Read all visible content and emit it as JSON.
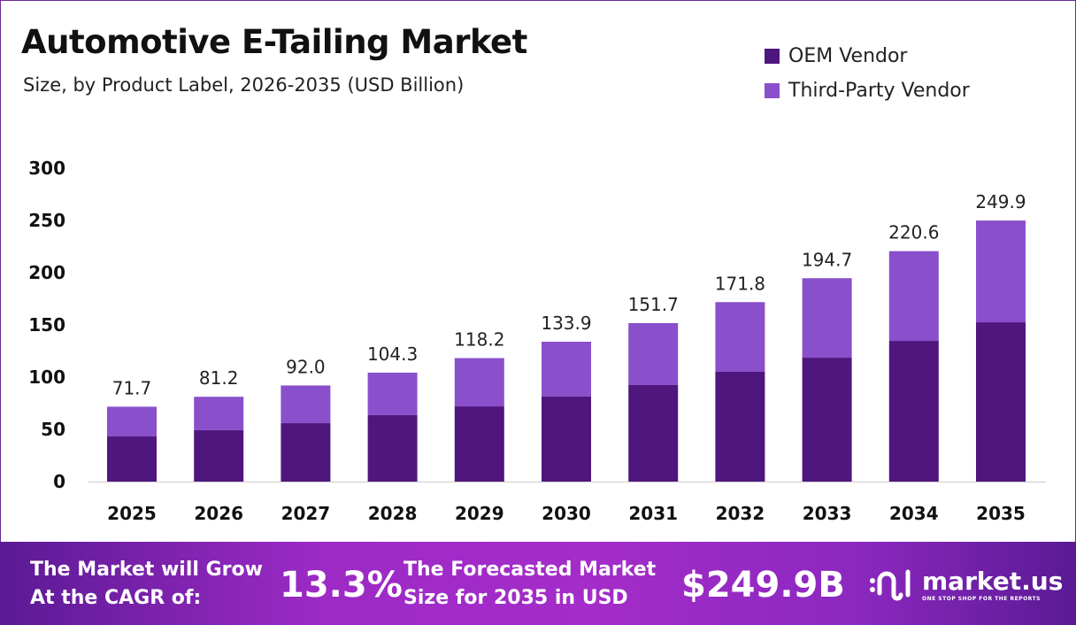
{
  "header": {
    "title": "Automotive E-Tailing Market",
    "subtitle": "Size, by Product Label, 2026-2035 (USD Billion)"
  },
  "chart_data": {
    "type": "bar",
    "stacked": true,
    "categories": [
      "2025",
      "2026",
      "2027",
      "2028",
      "2029",
      "2030",
      "2031",
      "2032",
      "2033",
      "2034",
      "2035"
    ],
    "series": [
      {
        "name": "OEM Vendor",
        "color": "#4f167e",
        "values": [
          43.2,
          49.2,
          55.9,
          63.6,
          72.0,
          81.4,
          92.4,
          105.1,
          118.6,
          134.7,
          152.5
        ]
      },
      {
        "name": "Third-Party Vendor",
        "color": "#8a4fcb",
        "values": [
          28.5,
          32.0,
          36.1,
          40.7,
          46.2,
          52.5,
          59.3,
          66.7,
          76.1,
          85.9,
          97.4
        ]
      }
    ],
    "totals": [
      "71.7",
      "81.2",
      "92.0",
      "104.3",
      "118.2",
      "133.9",
      "151.7",
      "171.8",
      "194.7",
      "220.6",
      "249.9"
    ],
    "yticks": [
      "0",
      "50",
      "100",
      "150",
      "200",
      "250",
      "300"
    ],
    "ylim": [
      0,
      300
    ],
    "grid": false,
    "legend": "top-right",
    "xlabel": "",
    "ylabel": ""
  },
  "footer": {
    "cagr_label_1": "The Market will Grow",
    "cagr_label_2": "At the CAGR of:",
    "cagr_value": "13.3%",
    "forecast_label_1": "The Forecasted Market",
    "forecast_label_2": "Size for 2035 in USD",
    "forecast_value": "$249.9B",
    "logo_name": "market.us",
    "logo_tagline": "ONE STOP SHOP FOR THE REPORTS"
  }
}
